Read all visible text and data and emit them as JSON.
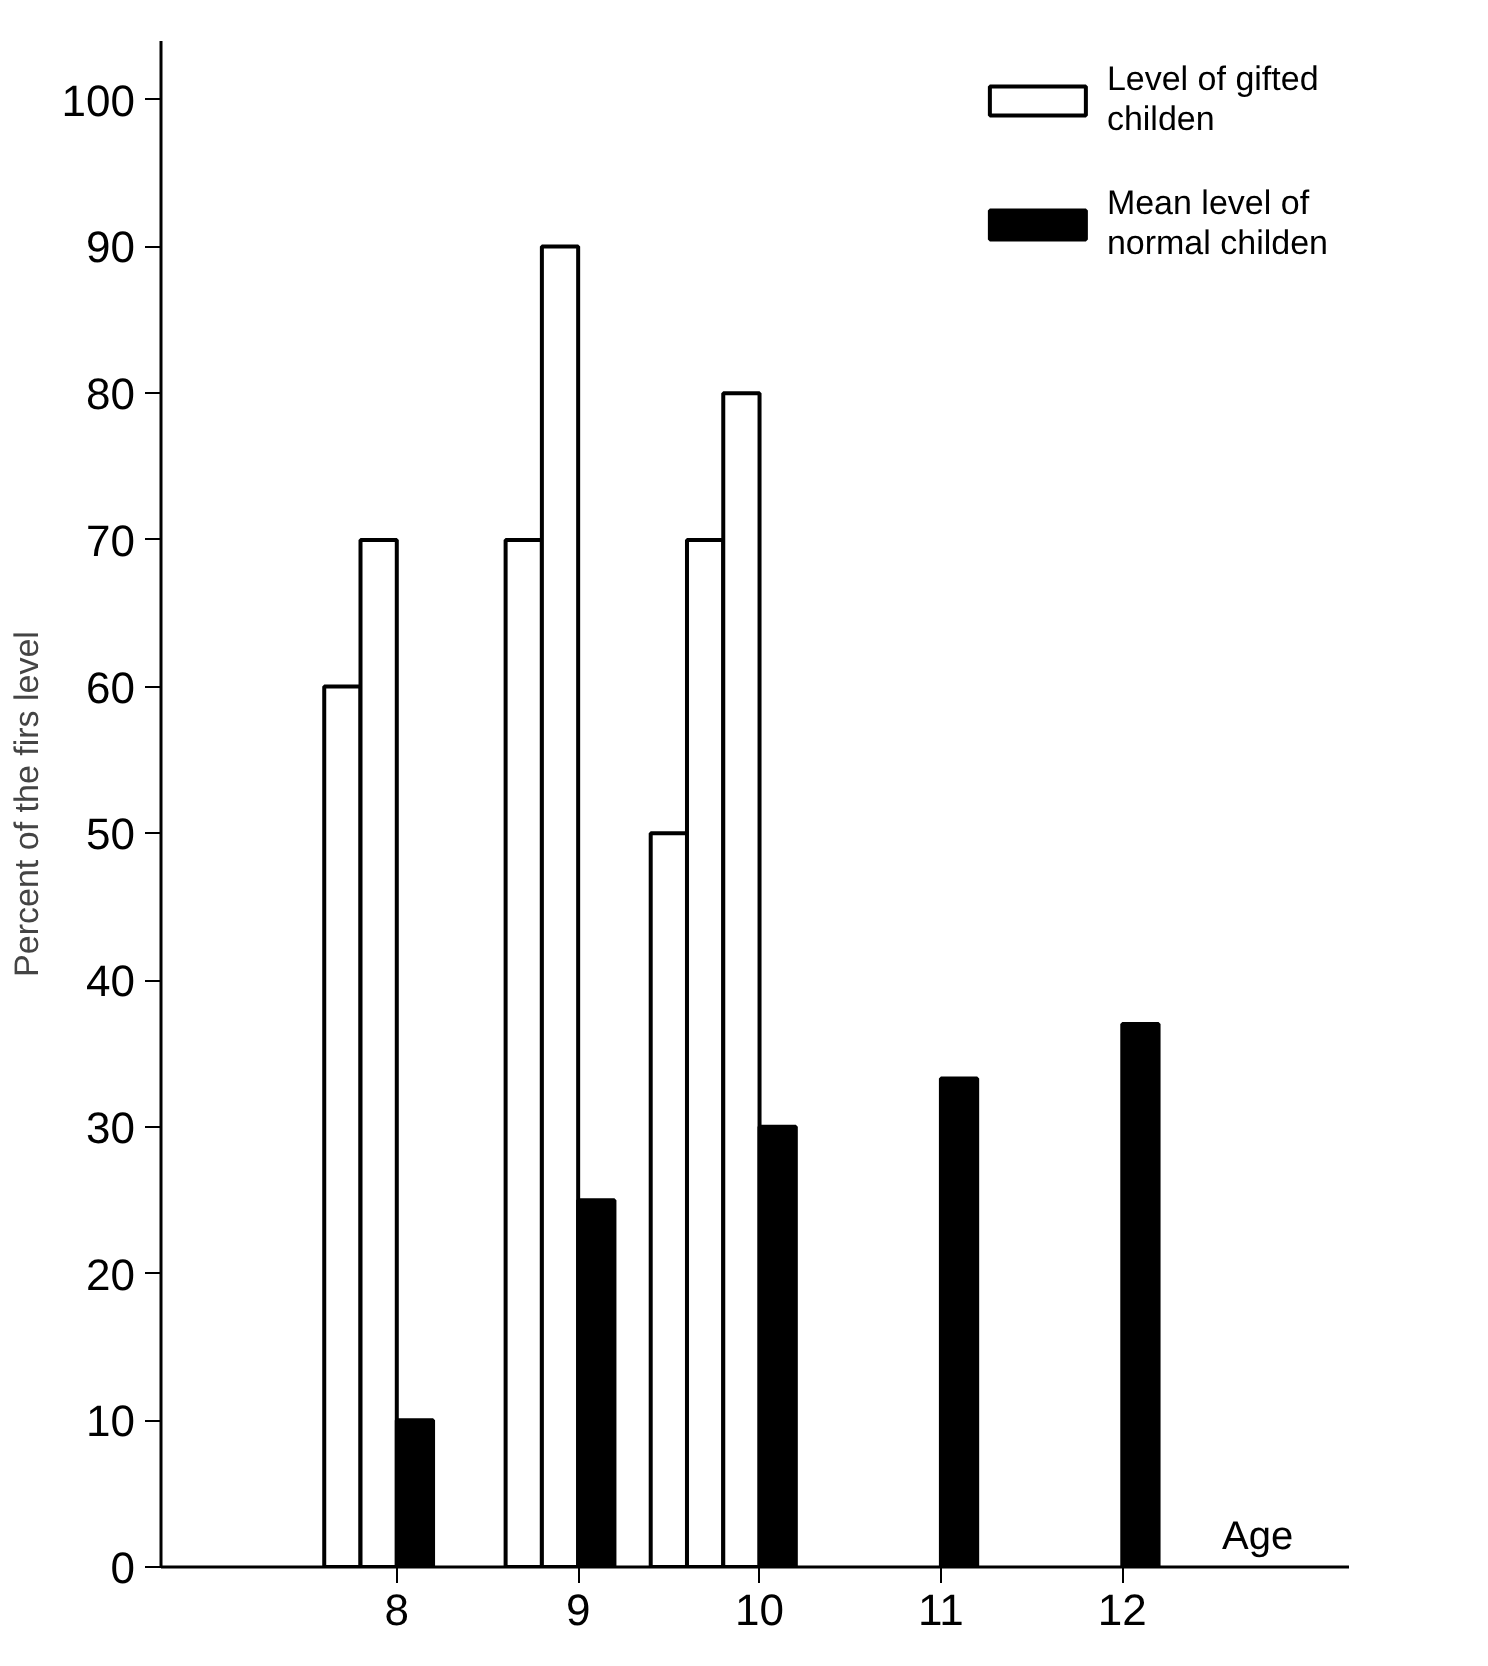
{
  "chart_data": {
    "type": "bar",
    "xlabel": "Age",
    "ylabel": "Percent of the firs level",
    "categories": [
      "8",
      "9",
      "10",
      "11",
      "12"
    ],
    "series": [
      {
        "name": "Level of gifted childen",
        "color": "#ffffff",
        "values": [
          60,
          70,
          50,
          null,
          null
        ]
      },
      {
        "color": "#ffffff",
        "values": [
          70,
          90,
          70,
          null,
          null
        ]
      },
      {
        "color": "#ffffff",
        "values": [
          null,
          null,
          80,
          null,
          null
        ]
      },
      {
        "name": "Mean level of normal childen",
        "color": "#000000",
        "values": [
          10,
          25,
          30,
          33.3,
          37
        ]
      }
    ],
    "ylim": [
      0,
      104
    ],
    "yticks": [
      0,
      10,
      20,
      30,
      40,
      50,
      60,
      70,
      80,
      90,
      100
    ],
    "grid": false,
    "legend": "top right"
  }
}
